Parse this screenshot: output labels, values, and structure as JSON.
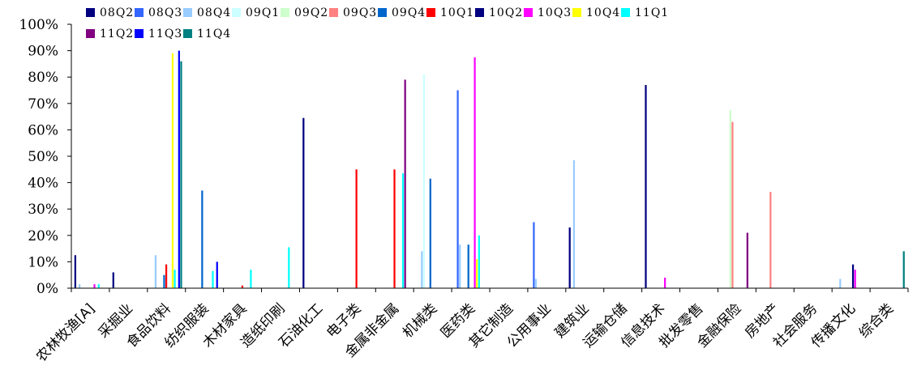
{
  "chart_data": {
    "type": "bar",
    "title": "",
    "xlabel": "",
    "ylabel": "",
    "ylim": [
      0,
      100
    ],
    "y_ticks": [
      "0%",
      "10%",
      "20%",
      "30%",
      "40%",
      "50%",
      "60%",
      "70%",
      "80%",
      "90%",
      "100%"
    ],
    "grid": false,
    "legend_position": "top",
    "categories": [
      "农林牧渔[A]",
      "采掘业",
      "食品饮料",
      "纺织服装",
      "木材家具",
      "造纸印刷",
      "石油化工",
      "电子类",
      "金属非金属",
      "机械类",
      "医药类",
      "其它制造",
      "公用事业",
      "建筑业",
      "运输仓储",
      "信息技术",
      "批发零售",
      "金融保险",
      "房地产",
      "社会服务",
      "传播文化",
      "综合类"
    ],
    "series": [
      {
        "name": "08Q2",
        "color": "#000080",
        "values": [
          12.5,
          6,
          0,
          0,
          0,
          0,
          64.5,
          0,
          0,
          0,
          0,
          0,
          0,
          23,
          0,
          77,
          0,
          0,
          0,
          0,
          0,
          0
        ]
      },
      {
        "name": "08Q3",
        "color": "#3366FF",
        "values": [
          0,
          0,
          0,
          0,
          0,
          0,
          0,
          0,
          0,
          0,
          75,
          0,
          25,
          0,
          0,
          0,
          0,
          0,
          0,
          0,
          0,
          0
        ]
      },
      {
        "name": "08Q4",
        "color": "#99CCFF",
        "values": [
          1.5,
          0,
          12.5,
          0,
          0,
          0,
          0,
          0,
          0,
          14,
          16.5,
          0,
          3.5,
          48.5,
          0,
          0,
          0,
          0,
          0,
          0,
          3.5,
          0
        ]
      },
      {
        "name": "09Q1",
        "color": "#CCFFFF",
        "values": [
          0,
          0,
          0,
          0,
          0,
          0,
          0,
          0,
          0,
          81,
          0,
          0,
          0,
          0,
          0,
          0,
          0,
          0,
          0,
          0,
          0,
          0
        ]
      },
      {
        "name": "09Q2",
        "color": "#CCFFCC",
        "values": [
          0,
          0,
          0,
          0,
          0,
          0,
          0,
          0,
          0,
          0,
          0,
          0,
          0,
          0,
          0,
          0,
          0,
          67.5,
          0,
          0,
          0,
          0
        ]
      },
      {
        "name": "09Q3",
        "color": "#FF8080",
        "values": [
          0,
          0,
          0,
          0,
          0,
          0,
          0,
          0,
          0,
          0,
          0,
          0,
          0,
          0,
          0,
          0,
          0,
          63,
          36.5,
          0,
          0,
          0
        ]
      },
      {
        "name": "09Q4",
        "color": "#0066CC",
        "values": [
          0,
          0,
          5,
          37,
          0,
          0,
          0,
          0,
          0,
          41.5,
          16.5,
          0,
          0,
          0,
          0,
          0,
          0,
          0,
          0,
          0,
          0,
          0
        ]
      },
      {
        "name": "10Q1",
        "color": "#FF0000",
        "values": [
          0,
          0,
          9,
          0,
          1,
          0,
          0,
          45,
          45,
          0,
          0,
          0,
          0,
          0,
          0,
          0,
          0,
          0,
          0,
          0,
          0,
          0
        ]
      },
      {
        "name": "10Q2",
        "color": "#000080",
        "values": [
          0,
          0,
          0,
          0,
          0,
          0,
          0,
          0,
          0,
          0,
          0,
          0,
          0,
          0,
          0,
          0,
          0,
          0,
          0,
          0,
          9,
          0
        ]
      },
      {
        "name": "10Q3",
        "color": "#FF00FF",
        "values": [
          1.5,
          0,
          0,
          0,
          0,
          0,
          0,
          0,
          0,
          0,
          87.5,
          0,
          0,
          0,
          0,
          4,
          0,
          0,
          0,
          0,
          7,
          0
        ]
      },
      {
        "name": "10Q4",
        "color": "#FFFF00",
        "values": [
          0,
          0,
          89,
          0,
          0,
          0,
          0,
          0,
          0,
          0,
          11,
          0,
          0,
          0,
          0,
          0,
          0,
          0,
          0,
          0,
          0,
          0
        ]
      },
      {
        "name": "11Q1",
        "color": "#00FFFF",
        "values": [
          1.5,
          0,
          7,
          6.5,
          7,
          15.5,
          0,
          0,
          43.5,
          0,
          20,
          0,
          0,
          0,
          0,
          0,
          0,
          0,
          0,
          0,
          0,
          0
        ]
      },
      {
        "name": "11Q2",
        "color": "#800080",
        "values": [
          0,
          0,
          0,
          0,
          0,
          0,
          0,
          0,
          79,
          0,
          0,
          0,
          0,
          0,
          0,
          0,
          0,
          21,
          0,
          0,
          0,
          0
        ]
      },
      {
        "name": "11Q3",
        "color": "#0000FF",
        "values": [
          0,
          0,
          90,
          10,
          0,
          0,
          0,
          0,
          0,
          0,
          0,
          0,
          0,
          0,
          0,
          0,
          0,
          0,
          0,
          0,
          0,
          0
        ]
      },
      {
        "name": "11Q4",
        "color": "#008080",
        "values": [
          0,
          0,
          86,
          0,
          0,
          0,
          0,
          0,
          0,
          0,
          0,
          0,
          0,
          0,
          0,
          0,
          0,
          0,
          0,
          0,
          0,
          14
        ]
      }
    ]
  }
}
